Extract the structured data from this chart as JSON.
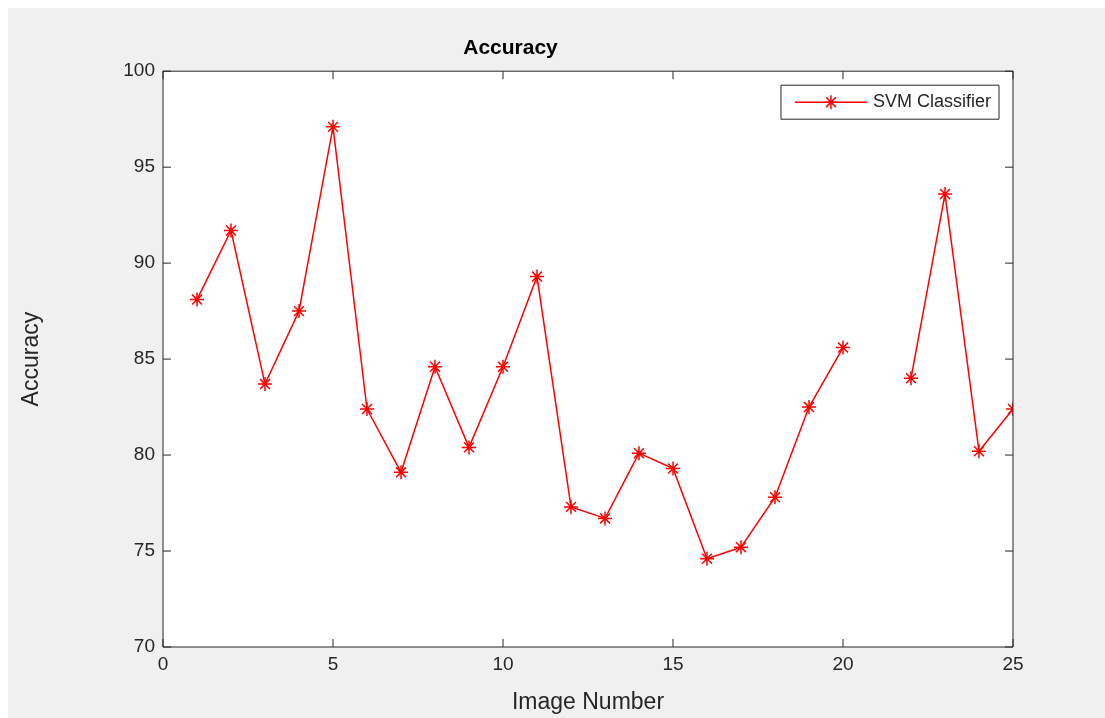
{
  "chart_data": {
    "type": "line",
    "title": "Accuracy",
    "xlabel": "Image Number",
    "ylabel": "Accuracy",
    "x": [
      1,
      2,
      3,
      4,
      5,
      6,
      7,
      8,
      9,
      10,
      11,
      12,
      13,
      14,
      15,
      16,
      17,
      18,
      19,
      20,
      21,
      22,
      23,
      24,
      25
    ],
    "series": [
      {
        "name": "SVM Classifier",
        "color": "#ff0000",
        "values": [
          88.1,
          91.7,
          83.7,
          87.5,
          97.1,
          82.4,
          79.1,
          84.6,
          80.4,
          84.6,
          89.3,
          77.3,
          76.7,
          80.1,
          79.3,
          74.6,
          75.2,
          77.8,
          82.5,
          85.6,
          null,
          84.0,
          93.6,
          80.2,
          82.4
        ]
      }
    ],
    "xlim": [
      0,
      25
    ],
    "xticks": [
      0,
      5,
      10,
      15,
      20,
      25
    ],
    "ylim": [
      70,
      100
    ],
    "yticks": [
      70,
      75,
      80,
      85,
      90,
      95,
      100
    ],
    "grid": false,
    "legend": "top right",
    "marker": "cross",
    "line_style": "solid"
  }
}
